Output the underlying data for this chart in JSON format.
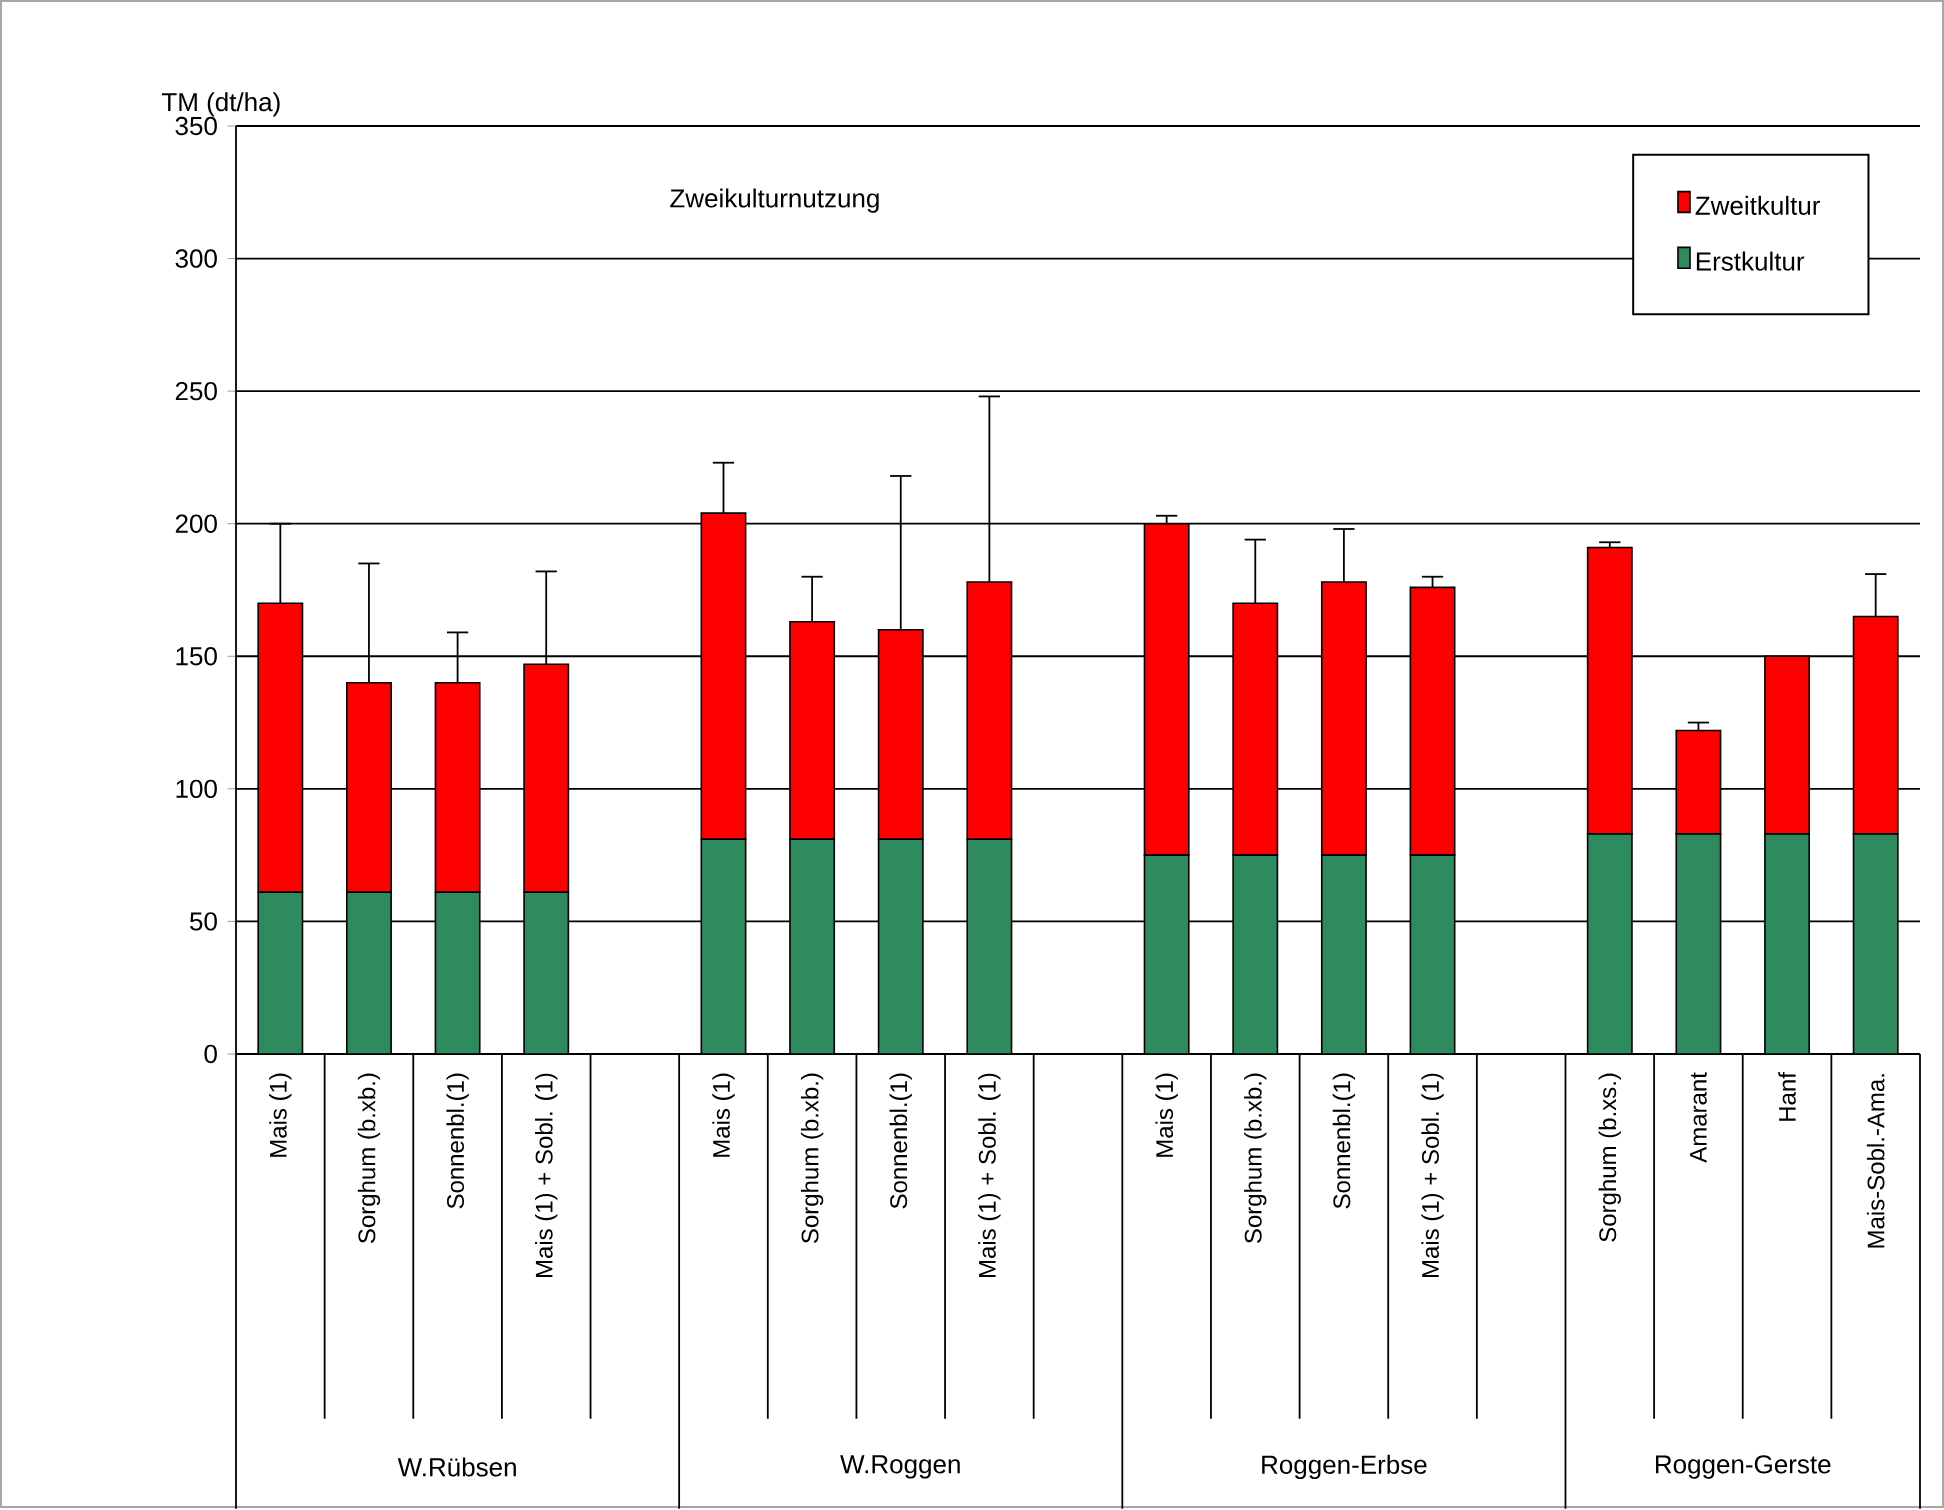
{
  "chart_data": {
    "type": "bar",
    "stacked": true,
    "title": "Zweikulturnutzung",
    "ylabel": "TM (dt/ha)",
    "categories": [
      "Mais (1)",
      "Sorghum (b.xb.)",
      "Sonnenbl.(1)",
      "Mais (1) + Sobl. (1)",
      null,
      "Mais (1)",
      "Sorghum (b.xb.)",
      "Sonnenbl.(1)",
      "Mais (1) + Sobl. (1)",
      null,
      "Mais (1)",
      "Sorghum (b.xb.)",
      "Sonnenbl.(1)",
      "Mais (1) + Sobl. (1)",
      null,
      "Sorghum (b.xs.)",
      "Amarant",
      "Hanf",
      "Mais-Sobl.-Ama."
    ],
    "series": [
      {
        "name": "Erstkultur",
        "color": "#2e8b5e",
        "values": [
          61,
          61,
          61,
          61,
          null,
          81,
          81,
          81,
          81,
          null,
          75,
          75,
          75,
          75,
          null,
          83,
          83,
          83,
          83
        ]
      },
      {
        "name": "Zweitkultur",
        "color": "#ff0000",
        "values": [
          109,
          79,
          79,
          86,
          null,
          123,
          82,
          79,
          97,
          null,
          125,
          95,
          103,
          101,
          null,
          108,
          39,
          67,
          82
        ],
        "errors": [
          30,
          45,
          19,
          35,
          null,
          19,
          17,
          58,
          70,
          null,
          3,
          24,
          20,
          4,
          null,
          2,
          3,
          null,
          16
        ]
      }
    ],
    "annotations": [
      "W.Rübsen",
      "W.Roggen",
      "Roggen-Erbse",
      "Roggen-Gerste"
    ],
    "ylim": [
      0,
      350
    ],
    "yticks": [
      0,
      50,
      100,
      150,
      200,
      250,
      300,
      350
    ],
    "grid": "y",
    "legend": "top right"
  }
}
